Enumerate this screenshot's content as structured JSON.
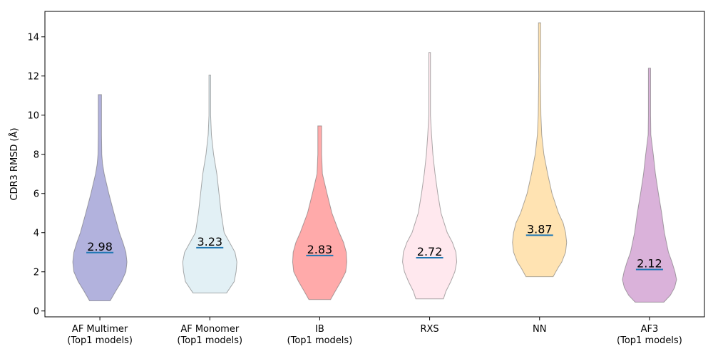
{
  "chart_data": {
    "type": "violin",
    "title": "",
    "xlabel": "",
    "ylabel": "CDR3 RMSD (Å)",
    "ylim": [
      -0.3,
      15.3
    ],
    "yticks": [
      0,
      2,
      4,
      6,
      8,
      10,
      12,
      14
    ],
    "grid": false,
    "categories": [
      {
        "line1": "AF Multimer",
        "line2": "(Top1 models)"
      },
      {
        "line1": "AF Monomer",
        "line2": "(Top1 models)"
      },
      {
        "line1": "IB",
        "line2": "(Top1 models)"
      },
      {
        "line1": "RXS",
        "line2": ""
      },
      {
        "line1": "NN",
        "line2": ""
      },
      {
        "line1": "AF3",
        "line2": "(Top1 models)"
      }
    ],
    "series": [
      {
        "median": 2.98,
        "median_label": "2.98",
        "min": 0.52,
        "max": 11.05,
        "color": "#6666bb",
        "profile": [
          [
            0.52,
            0.38
          ],
          [
            1.0,
            0.58
          ],
          [
            1.5,
            0.8
          ],
          [
            2.0,
            0.96
          ],
          [
            2.5,
            1.0
          ],
          [
            3.0,
            0.96
          ],
          [
            3.5,
            0.85
          ],
          [
            4.0,
            0.72
          ],
          [
            5.0,
            0.52
          ],
          [
            6.0,
            0.33
          ],
          [
            7.0,
            0.16
          ],
          [
            7.5,
            0.1
          ],
          [
            8.0,
            0.07
          ],
          [
            9.0,
            0.06
          ],
          [
            10.0,
            0.06
          ],
          [
            11.05,
            0.06
          ]
        ]
      },
      {
        "median": 3.23,
        "median_label": "3.23",
        "min": 0.92,
        "max": 12.05,
        "color": "#c6e2ec",
        "profile": [
          [
            0.92,
            0.62
          ],
          [
            1.5,
            0.9
          ],
          [
            2.0,
            0.97
          ],
          [
            2.5,
            1.0
          ],
          [
            3.0,
            0.93
          ],
          [
            3.5,
            0.73
          ],
          [
            4.0,
            0.53
          ],
          [
            5.0,
            0.42
          ],
          [
            6.0,
            0.34
          ],
          [
            7.0,
            0.26
          ],
          [
            8.0,
            0.14
          ],
          [
            9.0,
            0.06
          ],
          [
            10.0,
            0.03
          ],
          [
            11.0,
            0.03
          ],
          [
            12.05,
            0.03
          ]
        ]
      },
      {
        "median": 2.83,
        "median_label": "2.83",
        "min": 0.58,
        "max": 9.45,
        "color": "#ff5555",
        "profile": [
          [
            0.58,
            0.4
          ],
          [
            1.0,
            0.57
          ],
          [
            1.5,
            0.78
          ],
          [
            2.0,
            0.96
          ],
          [
            2.5,
            1.0
          ],
          [
            3.0,
            0.98
          ],
          [
            3.5,
            0.88
          ],
          [
            4.0,
            0.72
          ],
          [
            5.0,
            0.45
          ],
          [
            6.0,
            0.27
          ],
          [
            7.0,
            0.1
          ],
          [
            8.0,
            0.07
          ],
          [
            9.0,
            0.07
          ],
          [
            9.45,
            0.07
          ]
        ]
      },
      {
        "median": 2.72,
        "median_label": "2.72",
        "min": 0.62,
        "max": 13.2,
        "color": "#ffd2dd",
        "profile": [
          [
            0.62,
            0.51
          ],
          [
            1.0,
            0.6
          ],
          [
            1.5,
            0.78
          ],
          [
            2.0,
            0.93
          ],
          [
            2.5,
            1.0
          ],
          [
            3.0,
            0.97
          ],
          [
            3.5,
            0.84
          ],
          [
            4.0,
            0.65
          ],
          [
            5.0,
            0.42
          ],
          [
            6.0,
            0.3
          ],
          [
            7.0,
            0.2
          ],
          [
            8.0,
            0.12
          ],
          [
            9.0,
            0.07
          ],
          [
            10.0,
            0.03
          ],
          [
            11.0,
            0.03
          ],
          [
            12.0,
            0.03
          ],
          [
            13.2,
            0.03
          ]
        ]
      },
      {
        "median": 3.87,
        "median_label": "3.87",
        "min": 1.75,
        "max": 14.72,
        "color": "#ffc766",
        "profile": [
          [
            1.75,
            0.5
          ],
          [
            2.2,
            0.68
          ],
          [
            2.5,
            0.82
          ],
          [
            3.0,
            0.96
          ],
          [
            3.5,
            1.0
          ],
          [
            4.0,
            0.96
          ],
          [
            4.5,
            0.87
          ],
          [
            5.0,
            0.7
          ],
          [
            6.0,
            0.46
          ],
          [
            7.0,
            0.3
          ],
          [
            8.0,
            0.16
          ],
          [
            9.0,
            0.08
          ],
          [
            10.0,
            0.05
          ],
          [
            11.0,
            0.04
          ],
          [
            12.0,
            0.03
          ],
          [
            13.0,
            0.04
          ],
          [
            14.72,
            0.04
          ]
        ]
      },
      {
        "median": 2.12,
        "median_label": "2.12",
        "min": 0.45,
        "max": 12.4,
        "color": "#b566b5",
        "profile": [
          [
            0.45,
            0.53
          ],
          [
            0.8,
            0.77
          ],
          [
            1.2,
            0.93
          ],
          [
            1.6,
            1.0
          ],
          [
            2.0,
            0.94
          ],
          [
            2.5,
            0.83
          ],
          [
            3.0,
            0.7
          ],
          [
            4.0,
            0.55
          ],
          [
            5.0,
            0.45
          ],
          [
            6.0,
            0.33
          ],
          [
            7.0,
            0.22
          ],
          [
            8.0,
            0.14
          ],
          [
            9.0,
            0.05
          ],
          [
            10.0,
            0.04
          ],
          [
            11.0,
            0.04
          ],
          [
            12.4,
            0.04
          ]
        ]
      }
    ]
  }
}
